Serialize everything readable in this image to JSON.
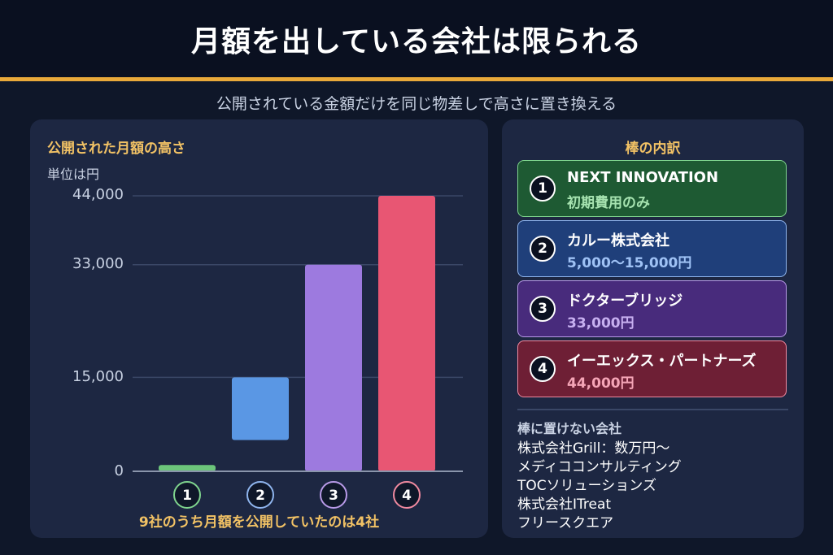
{
  "header": {
    "title": "月額を出している会社は限られる"
  },
  "subtitle": "公開されている金額だけを同じ物差しで高さに置き換える",
  "chart_panel": {
    "title": "公開された月額の高さ",
    "unit": "単位は円",
    "footnote": "9社のうち月額を公開していたのは4社"
  },
  "chart_data": {
    "type": "bar",
    "title": "公開された月額の高さ",
    "ylabel": "単位は円",
    "ylim": [
      0,
      44000
    ],
    "yticks": [
      "0",
      "15,000",
      "33,000",
      "44,000"
    ],
    "ytick_values": [
      0,
      15000,
      33000,
      44000
    ],
    "categories": [
      "1",
      "2",
      "3",
      "4"
    ],
    "bars": [
      {
        "label": "1",
        "low": 0,
        "high": 1000,
        "color": "#6cc57a"
      },
      {
        "label": "2",
        "low": 5000,
        "high": 15000,
        "color": "#5a97e4"
      },
      {
        "label": "3",
        "low": 0,
        "high": 33000,
        "color": "#9d7adf"
      },
      {
        "label": "4",
        "low": 0,
        "high": 44000,
        "color": "#e85673"
      }
    ],
    "grid": true
  },
  "breakdown": {
    "title": "棒の内訳",
    "items": [
      {
        "num": "1",
        "name": "NEXT INNOVATION",
        "detail": "初期費用のみ",
        "bg": "#1e5a33",
        "border": "#7fd48e",
        "sub_color": "#a6e3b0"
      },
      {
        "num": "2",
        "name": "カルー株式会社",
        "detail": "5,000〜15,000円",
        "bg": "#1f3f7a",
        "border": "#8fb5ee",
        "sub_color": "#9fc2f5"
      },
      {
        "num": "3",
        "name": "ドクターブリッジ",
        "detail": "33,000円",
        "bg": "#482b7c",
        "border": "#b89ae8",
        "sub_color": "#c7b0f0"
      },
      {
        "num": "4",
        "name": "イーエックス・パートナーズ",
        "detail": "44,000円",
        "bg": "#6e1f35",
        "border": "#f08aa0",
        "sub_color": "#f5a5b7"
      }
    ],
    "others_title": "棒に置けない会社",
    "others": [
      "株式会社Grill：数万円〜",
      "メディココンサルティング",
      "TOCソリューションズ",
      "株式会社ITreat",
      "フリースクエア"
    ]
  }
}
